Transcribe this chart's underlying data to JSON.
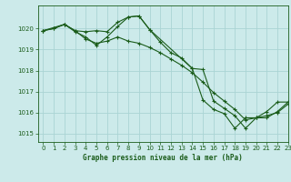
{
  "title": "Graphe pression niveau de la mer (hPa)",
  "bg_color": "#cceaea",
  "grid_color": "#aad4d4",
  "line_color": "#1a5c1a",
  "xlim": [
    -0.5,
    23
  ],
  "ylim": [
    1014.6,
    1021.1
  ],
  "yticks": [
    1015,
    1016,
    1017,
    1018,
    1019,
    1020
  ],
  "xticks": [
    0,
    1,
    2,
    3,
    4,
    5,
    6,
    7,
    8,
    9,
    10,
    11,
    12,
    13,
    14,
    15,
    16,
    17,
    18,
    19,
    20,
    21,
    22,
    23
  ],
  "series": [
    {
      "x": [
        0,
        1,
        2,
        3,
        4,
        5,
        6,
        7,
        8,
        9,
        10,
        11,
        12,
        13,
        14,
        15,
        16,
        17,
        18,
        19,
        20,
        21,
        22,
        23
      ],
      "y": [
        1019.9,
        1020.0,
        1020.2,
        1019.9,
        1019.85,
        1019.9,
        1019.85,
        1020.3,
        1020.55,
        1020.6,
        1019.95,
        1019.35,
        1018.85,
        1018.6,
        1018.1,
        1016.6,
        1016.15,
        1015.95,
        1015.25,
        1015.75,
        1015.75,
        1016.05,
        1016.5,
        1016.5
      ]
    },
    {
      "x": [
        0,
        1,
        2,
        3,
        4,
        5,
        6,
        7,
        8,
        9,
        10,
        11,
        12,
        13,
        14,
        15,
        16,
        17,
        18,
        19,
        20,
        21,
        22,
        23
      ],
      "y": [
        1019.9,
        1020.0,
        1020.2,
        1019.9,
        1019.5,
        1019.3,
        1019.4,
        1019.6,
        1019.4,
        1019.3,
        1019.1,
        1018.85,
        1018.55,
        1018.25,
        1017.9,
        1017.45,
        1016.95,
        1016.55,
        1016.15,
        1015.65,
        1015.75,
        1015.85,
        1016.0,
        1016.4
      ]
    },
    {
      "x": [
        0,
        2,
        3,
        4,
        5,
        6,
        7,
        8,
        9,
        10,
        14,
        15,
        16,
        17,
        18,
        19,
        20,
        21,
        22,
        23
      ],
      "y": [
        1019.9,
        1020.2,
        1019.85,
        1019.6,
        1019.2,
        1019.6,
        1020.1,
        1020.55,
        1020.6,
        1019.95,
        1018.1,
        1018.05,
        1016.55,
        1016.2,
        1015.85,
        1015.25,
        1015.75,
        1015.75,
        1016.05,
        1016.5
      ]
    }
  ]
}
